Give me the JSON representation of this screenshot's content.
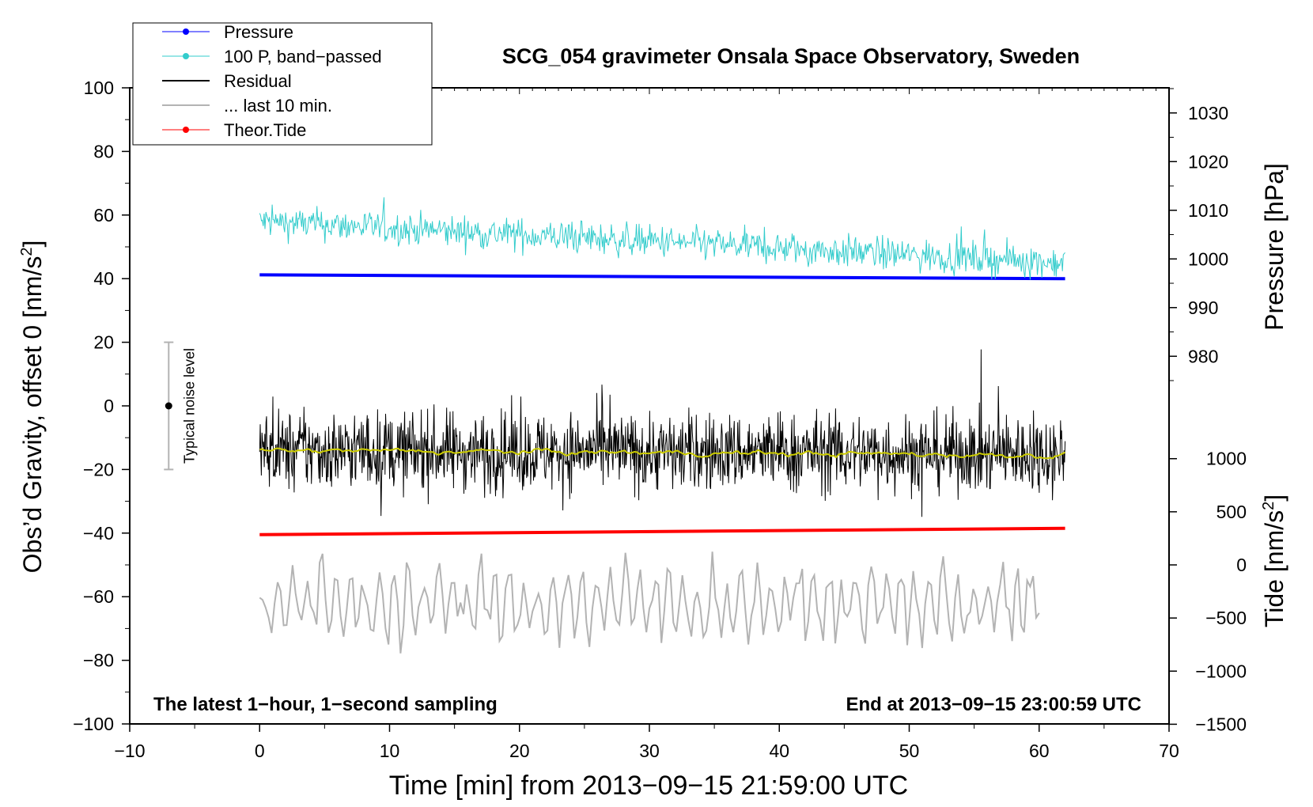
{
  "chart_data": {
    "type": "line",
    "title": "SCG_054 gravimeter Onsala Space Observatory, Sweden",
    "xlabel": "Time [min] from 2013−09−15 21:59:00 UTC",
    "ylabel_left": "Obs’d Gravity, offset 0 [nm/s",
    "ylabel_left_sup": "2",
    "ylabel_left_end": "]",
    "ylabel_right_pressure": "Pressure [hPa]",
    "ylabel_right_tide": "Tide [nm/s",
    "ylabel_right_tide_sup": "2",
    "ylabel_right_tide_end": "]",
    "xlim": [
      -10,
      70
    ],
    "ylim": [
      -100,
      100
    ],
    "x_ticks": [
      "−10",
      "0",
      "10",
      "20",
      "30",
      "40",
      "50",
      "60",
      "70"
    ],
    "x_tick_values": [
      -10,
      0,
      10,
      20,
      30,
      40,
      50,
      60,
      70
    ],
    "y_ticks": [
      "100",
      "80",
      "60",
      "40",
      "20",
      "0",
      "−20",
      "−40",
      "−60",
      "−80",
      "−100"
    ],
    "y_tick_values": [
      100,
      80,
      60,
      40,
      20,
      0,
      -20,
      -40,
      -60,
      -80,
      -100
    ],
    "pressure_axis": {
      "ticks": [
        "1030",
        "1020",
        "1010",
        "1000",
        "990",
        "980"
      ],
      "values": [
        1030,
        1020,
        1010,
        1000,
        990,
        980
      ],
      "gravity_at_1000": 46.2,
      "gravity_per_hpa": 1.53
    },
    "tide_axis": {
      "ticks": [
        "1000",
        "500",
        "0",
        "−500",
        "−1000",
        "−1500"
      ],
      "values": [
        1000,
        500,
        0,
        -500,
        -1000,
        -1500
      ],
      "gravity_at_0": -50,
      "gravity_per_unit": 0.0334
    },
    "series": [
      {
        "name": "Pressure",
        "color": "#0000ff",
        "x_range": [
          0,
          62
        ],
        "start": 41.2,
        "end": 40.0,
        "style": "thick-line"
      },
      {
        "name": "100 P, band−passed",
        "color": "#33cccc",
        "x_range": [
          0,
          62
        ],
        "start": 58,
        "end": 45,
        "spread": 5,
        "style": "noise"
      },
      {
        "name": "Residual",
        "color": "#000000",
        "x_range": [
          0,
          62
        ],
        "start": -14,
        "end": -15,
        "spread": 12,
        "style": "noise"
      },
      {
        "name": "... last 10 min.",
        "color": "#b3b3b3",
        "x_range": [
          0,
          60
        ],
        "start": -62,
        "end": -62,
        "spread": 11,
        "style": "noise"
      },
      {
        "name": "Theor.Tide",
        "color": "#ff0000",
        "x_range": [
          0,
          62
        ],
        "start": -40.5,
        "end": -38.5,
        "style": "thick-line"
      },
      {
        "name": "smoothed residual",
        "color": "#cccc00",
        "x_range": [
          0,
          62
        ],
        "start": -14,
        "end": -15.5,
        "spread": 0.6,
        "style": "noise"
      }
    ],
    "noise_bar": {
      "label": "Typical noise level",
      "x": -7,
      "y_center": 0,
      "y_low": -20,
      "y_high": 20
    },
    "legend": [
      "Pressure",
      "100 P, band−passed",
      "Residual",
      "... last 10 min.",
      "Theor.Tide"
    ],
    "legend_position": "top-left",
    "annotations": {
      "bottom_left": "The latest 1−hour, 1−second sampling",
      "bottom_right": "End at 2013−09−15 23:00:59 UTC"
    }
  }
}
